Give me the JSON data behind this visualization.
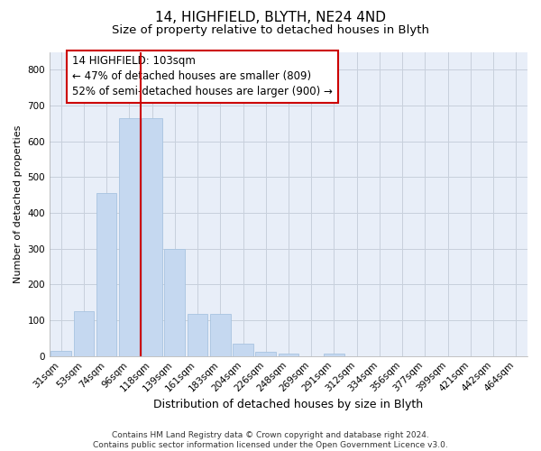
{
  "title1": "14, HIGHFIELD, BLYTH, NE24 4ND",
  "title2": "Size of property relative to detached houses in Blyth",
  "xlabel": "Distribution of detached houses by size in Blyth",
  "ylabel": "Number of detached properties",
  "categories": [
    "31sqm",
    "53sqm",
    "74sqm",
    "96sqm",
    "118sqm",
    "139sqm",
    "161sqm",
    "183sqm",
    "204sqm",
    "226sqm",
    "248sqm",
    "269sqm",
    "291sqm",
    "312sqm",
    "334sqm",
    "356sqm",
    "377sqm",
    "399sqm",
    "421sqm",
    "442sqm",
    "464sqm"
  ],
  "values": [
    15,
    125,
    455,
    665,
    665,
    300,
    118,
    118,
    35,
    13,
    8,
    0,
    8,
    0,
    0,
    0,
    0,
    0,
    0,
    0,
    0
  ],
  "bar_color": "#c5d8f0",
  "bar_edge_color": "#a8c4e0",
  "vline_color": "#cc0000",
  "vline_x_index": 3.5,
  "annotation_text": "14 HIGHFIELD: 103sqm\n← 47% of detached houses are smaller (809)\n52% of semi-detached houses are larger (900) →",
  "annotation_box_color": "#ffffff",
  "annotation_box_edge": "#cc0000",
  "ylim": [
    0,
    850
  ],
  "yticks": [
    0,
    100,
    200,
    300,
    400,
    500,
    600,
    700,
    800
  ],
  "grid_color": "#c8d0dc",
  "background_color": "#e8eef8",
  "footer_text": "Contains HM Land Registry data © Crown copyright and database right 2024.\nContains public sector information licensed under the Open Government Licence v3.0.",
  "title1_fontsize": 11,
  "title2_fontsize": 9.5,
  "xlabel_fontsize": 9,
  "ylabel_fontsize": 8,
  "tick_fontsize": 7.5,
  "annotation_fontsize": 8.5,
  "footer_fontsize": 6.5
}
